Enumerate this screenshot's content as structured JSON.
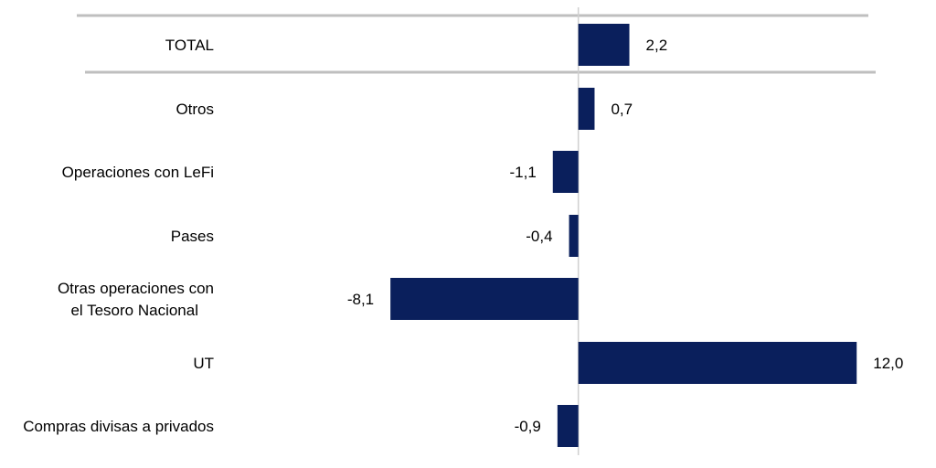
{
  "chart_data": {
    "type": "bar",
    "orientation": "horizontal",
    "categories": [
      [
        "TOTAL"
      ],
      [
        "Otros"
      ],
      [
        "Operaciones con LeFi"
      ],
      [
        "Pases"
      ],
      [
        "Otras operaciones con",
        "el Tesoro Nacional"
      ],
      [
        "UT"
      ],
      [
        "Compras divisas a privados"
      ]
    ],
    "values": [
      2.2,
      0.7,
      -1.1,
      -0.4,
      -8.1,
      12.0,
      -0.9
    ],
    "value_labels": [
      "2,2",
      "0,7",
      "-1,1",
      "-0,4",
      "-8,1",
      "12,0",
      "-0,9"
    ],
    "xlim": [
      -21.7,
      12.7
    ],
    "grid": false,
    "legend": "none",
    "colors": {
      "bar": "#0a1f5c",
      "separator": "#bfbfbf",
      "zero_line": "#d0d0d0"
    }
  }
}
